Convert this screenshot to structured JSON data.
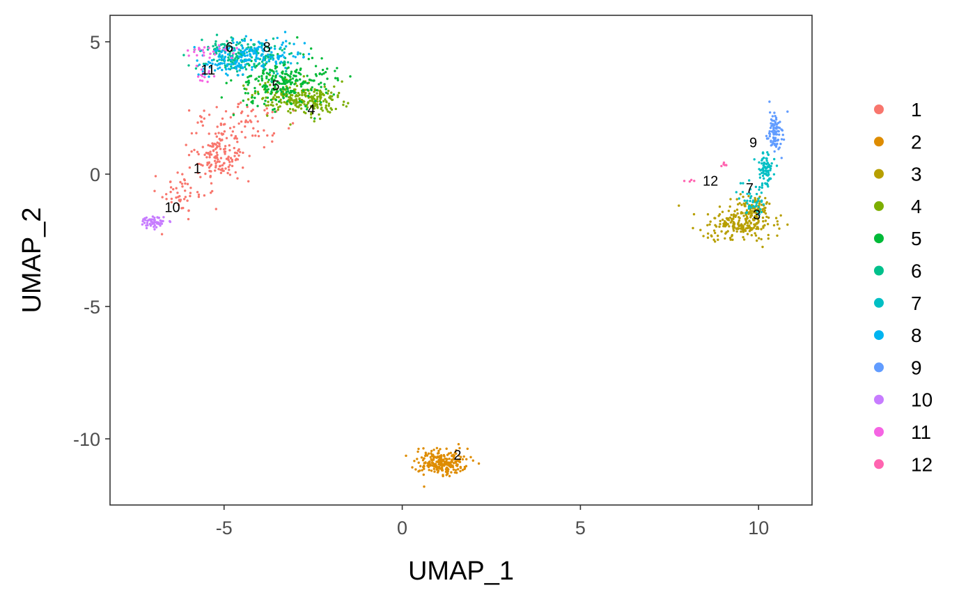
{
  "chart_data": {
    "type": "scatter",
    "title": "",
    "xlabel": "UMAP_1",
    "ylabel": "UMAP_2",
    "xlim": [
      -8.2,
      11.5
    ],
    "ylim": [
      -12.5,
      6.0
    ],
    "x_ticks": [
      -5,
      0,
      5,
      10
    ],
    "y_ticks": [
      5,
      0,
      -5,
      -10
    ],
    "x_tick_labels": [
      "-5",
      "0",
      "5",
      "10"
    ],
    "y_tick_labels": [
      "5",
      "0",
      "-5",
      "-10"
    ],
    "grid": false,
    "legend_position": "right",
    "series": [
      {
        "name": "1",
        "color": "#F8766D",
        "cells": 260,
        "center": [
          -5.0,
          0.5
        ]
      },
      {
        "name": "2",
        "color": "#DE8C00",
        "cells": 240,
        "center": [
          1.1,
          -10.9
        ]
      },
      {
        "name": "3",
        "color": "#B79F00",
        "cells": 280,
        "center": [
          9.6,
          -1.8
        ]
      },
      {
        "name": "4",
        "color": "#7CAE00",
        "cells": 250,
        "center": [
          -2.6,
          2.7
        ]
      },
      {
        "name": "5",
        "color": "#00BA38",
        "cells": 240,
        "center": [
          -3.6,
          3.4
        ]
      },
      {
        "name": "6",
        "color": "#00C08B",
        "cells": 200,
        "center": [
          -4.8,
          4.6
        ]
      },
      {
        "name": "7",
        "color": "#00BFC4",
        "cells": 120,
        "center": [
          10.0,
          -0.6
        ]
      },
      {
        "name": "8",
        "color": "#00B4F0",
        "cells": 200,
        "center": [
          -4.1,
          4.6
        ]
      },
      {
        "name": "9",
        "color": "#619CFF",
        "cells": 90,
        "center": [
          10.4,
          1.5
        ]
      },
      {
        "name": "10",
        "color": "#C77CFF",
        "cells": 60,
        "center": [
          -6.9,
          -1.8
        ]
      },
      {
        "name": "11",
        "color": "#F564E3",
        "cells": 40,
        "center": [
          -5.6,
          4.4
        ]
      },
      {
        "name": "12",
        "color": "#FF64B0",
        "cells": 10,
        "center": [
          8.5,
          -0.3
        ]
      }
    ],
    "cluster_labels": [
      {
        "text": "1",
        "x": -5.75,
        "y": 0.22
      },
      {
        "text": "2",
        "x": 1.55,
        "y": -10.6
      },
      {
        "text": "3",
        "x": 9.95,
        "y": -1.52
      },
      {
        "text": "4",
        "x": -2.55,
        "y": 2.45
      },
      {
        "text": "5",
        "x": -3.55,
        "y": 3.35
      },
      {
        "text": "6",
        "x": -4.85,
        "y": 4.8
      },
      {
        "text": "7",
        "x": 9.75,
        "y": -0.52
      },
      {
        "text": "8",
        "x": -3.8,
        "y": 4.8
      },
      {
        "text": "9",
        "x": 9.85,
        "y": 1.2
      },
      {
        "text": "10",
        "x": -6.45,
        "y": -1.25
      },
      {
        "text": "11",
        "x": -5.45,
        "y": 3.95
      },
      {
        "text": "12",
        "x": 8.65,
        "y": -0.25
      }
    ]
  }
}
